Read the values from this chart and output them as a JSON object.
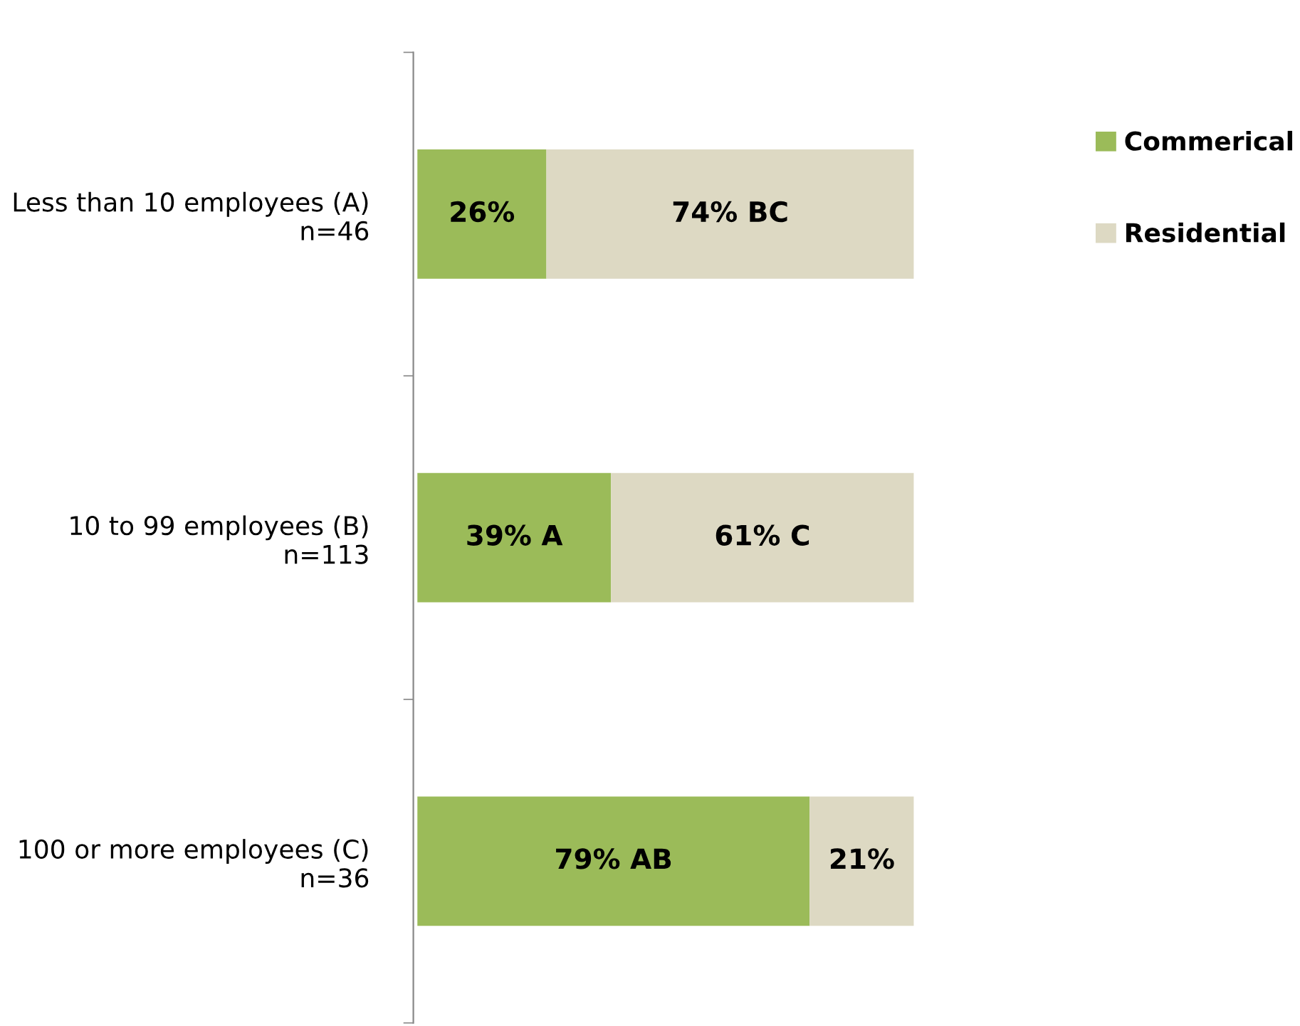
{
  "chart_data": {
    "type": "bar",
    "orientation": "horizontal",
    "stacked": true,
    "categories": [
      "Less than 10 employees (A)\nn=46",
      "10 to 99 employees (B)\nn=113",
      "100 or more employees (C)\nn=36"
    ],
    "series": [
      {
        "name": "Commerical",
        "color": "#9bbb59",
        "values": [
          26,
          39,
          79
        ],
        "value_labels": [
          "26%",
          "39% A",
          "79% AB"
        ]
      },
      {
        "name": "Residential",
        "color": "#ddd9c3",
        "values": [
          74,
          61,
          21
        ],
        "value_labels": [
          "74% BC",
          "61% C",
          "21%"
        ]
      }
    ],
    "xlim": [
      0,
      100
    ],
    "tick_labels": "y",
    "grid": false,
    "legend": "top right"
  }
}
